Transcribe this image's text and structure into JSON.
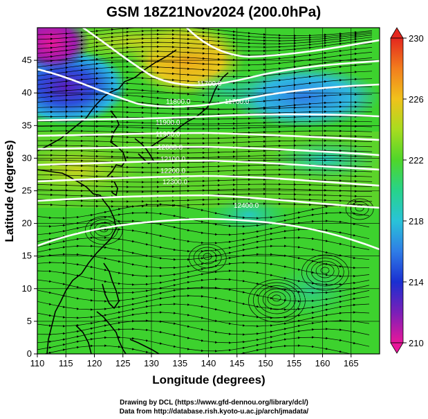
{
  "title": "GSM 18Z21Nov2024 (200.0hPa)",
  "xlabel": "Longitude (degrees)",
  "ylabel": "Latitude  (degrees)",
  "x_ticks": [
    "110",
    "115",
    "120",
    "125",
    "130",
    "135",
    "140",
    "145",
    "150",
    "155",
    "160",
    "165"
  ],
  "y_ticks": [
    "0",
    "5",
    "10",
    "15",
    "20",
    "25",
    "30",
    "35",
    "40",
    "45"
  ],
  "colorbar": {
    "ticks": [
      "210",
      "214",
      "218",
      "222",
      "226",
      "230"
    ],
    "min": 210,
    "max": 230
  },
  "contour_labels": [
    "11700.0",
    "11800.0",
    "11900.0",
    "12000.0",
    "12100.0",
    "12200.0",
    "12300.0",
    "12400.0",
    "11600.0"
  ],
  "credits": {
    "line1": "Drawing by DCL (https://www.gfd-dennou.org/library/dcl/)",
    "line2": "Data from http://database.rish.kyoto-u.ac.jp/arch/jmadata/"
  },
  "colors": {
    "jet": "#ffffff",
    "coast": "#000000",
    "grid": "#000000"
  },
  "chart_data": {
    "type": "heatmap",
    "variable": "temperature (K) with geopotential height contours and wind streamlines",
    "xlim": [
      110,
      170
    ],
    "ylim": [
      0,
      50
    ],
    "clim": [
      210,
      230
    ],
    "xlabel": "Longitude (degrees)",
    "ylabel": "Latitude  (degrees)"
  }
}
